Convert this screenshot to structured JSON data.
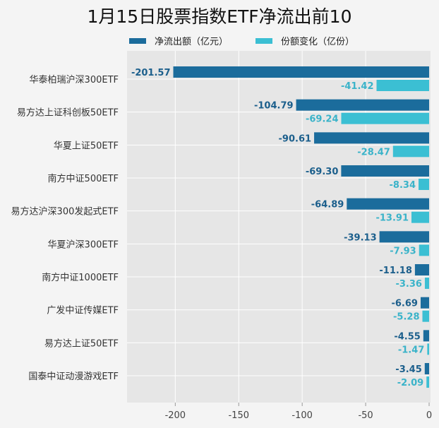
{
  "chart_data": {
    "type": "bar",
    "orientation": "horizontal",
    "title": "1月15日股票指数ETF净流出前10",
    "categories": [
      "华泰柏瑞沪深300ETF",
      "易方达上证科创板50ETF",
      "华夏上证50ETF",
      "南方中证500ETF",
      "易方达沪深300发起式ETF",
      "华夏沪深300ETF",
      "南方中证1000ETF",
      "广发中证传媒ETF",
      "易方达上证50ETF",
      "国泰中证动漫游戏ETF"
    ],
    "series": [
      {
        "name": "净流出额（亿元）",
        "color": "#1b6c9c",
        "label_color": "#1c5f8c",
        "values": [
          -201.57,
          -104.79,
          -90.61,
          -69.3,
          -64.89,
          -39.13,
          -11.18,
          -6.69,
          -4.55,
          -3.45
        ]
      },
      {
        "name": "份额变化（亿份）",
        "color": "#3bbfd3",
        "label_color": "#3ab3c9",
        "values": [
          -41.42,
          -69.24,
          -28.47,
          -8.34,
          -13.91,
          -7.93,
          -3.36,
          -5.28,
          -1.47,
          -2.09
        ]
      }
    ],
    "xticks": [
      -200,
      -150,
      -100,
      -50,
      0
    ],
    "xlim": [
      -238,
      0
    ],
    "grid": true,
    "legend_position": "top"
  }
}
